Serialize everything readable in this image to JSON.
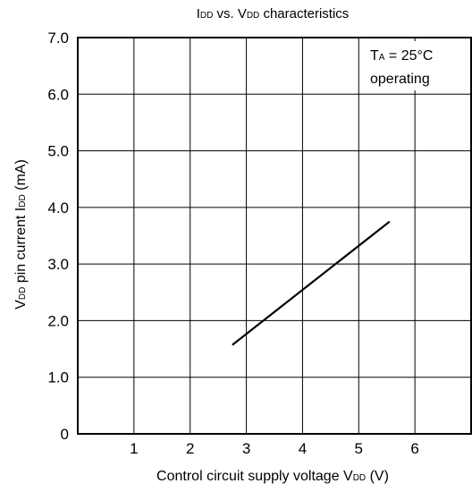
{
  "chart_data": {
    "type": "line",
    "title": {
      "main": "I",
      "sub1": "DD",
      "mid": " vs. V",
      "sub2": "DD",
      "tail": " characteristics"
    },
    "xlabel": {
      "main": "Control circuit supply voltage  V",
      "sub": "DD",
      "tail": "  (V)"
    },
    "ylabel": {
      "main": "V",
      "sub1": "DD",
      "mid": " pin current  I",
      "sub2": "DD",
      "tail": "  (mA)"
    },
    "xlim": [
      0,
      7
    ],
    "ylim": [
      0,
      7
    ],
    "x_ticks": [
      "1",
      "2",
      "3",
      "4",
      "5",
      "6"
    ],
    "y_ticks": [
      "0",
      "1.0",
      "2.0",
      "3.0",
      "4.0",
      "5.0",
      "6.0",
      "7.0"
    ],
    "grid": true,
    "annotation": {
      "line1_main": "T",
      "line1_sub": "A",
      "line1_tail": " = 25°C",
      "line2": "operating"
    },
    "series": [
      {
        "x": [
          2.75,
          5.55
        ],
        "y": [
          1.57,
          3.75
        ]
      }
    ]
  }
}
